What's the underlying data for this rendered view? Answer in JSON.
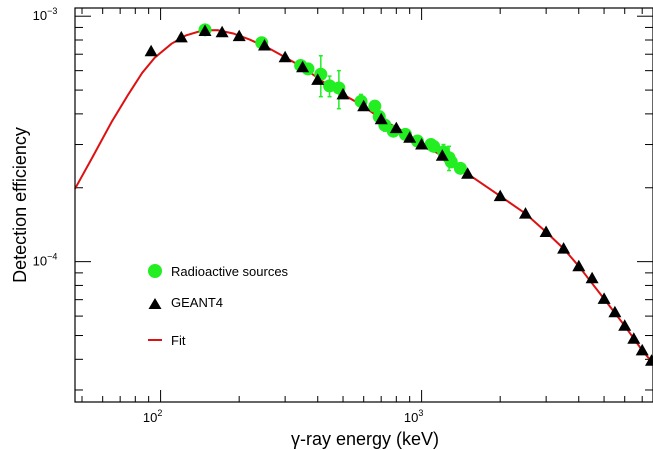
{
  "chart_data": {
    "type": "scatter",
    "xlabel": "γ-ray energy (keV)",
    "ylabel": "Detection efficiency",
    "x_scale": "log",
    "y_scale": "log",
    "xlim": [
      47,
      7700
    ],
    "ylim": [
      2.68e-05,
      0.00108
    ],
    "x_tick_labels": [
      {
        "value": 100,
        "base": "10",
        "exp": "2"
      },
      {
        "value": 1000,
        "base": "10",
        "exp": "3"
      }
    ],
    "y_tick_labels": [
      {
        "value": 0.0001,
        "base": "10",
        "exp": "−4"
      },
      {
        "value": 0.001,
        "base": "10",
        "exp": "−3"
      }
    ],
    "grid": false,
    "legend_position": "lower-left",
    "legend": [
      {
        "label": "Radioactive sources",
        "marker": "circle",
        "color": "#22ee22"
      },
      {
        "label": "GEANT4",
        "marker": "triangle",
        "color": "#000000"
      },
      {
        "label": "Fit",
        "marker": "line",
        "color": "#dd1111"
      }
    ],
    "series": [
      {
        "name": "Radioactive sources",
        "marker": "circle",
        "color": "#22ee22",
        "points": [
          {
            "x": 148,
            "y": 0.00088,
            "err": 1e-05
          },
          {
            "x": 244,
            "y": 0.00078,
            "err": 1e-05
          },
          {
            "x": 344,
            "y": 0.00063,
            "err": 2e-05
          },
          {
            "x": 367,
            "y": 0.00061,
            "err": 2e-05
          },
          {
            "x": 411,
            "y": 0.00058,
            "err": 0.00011
          },
          {
            "x": 444,
            "y": 0.00052,
            "err": 5e-05
          },
          {
            "x": 482,
            "y": 0.00051,
            "err": 9e-05
          },
          {
            "x": 586,
            "y": 0.00045,
            "err": 3e-05
          },
          {
            "x": 662,
            "y": 0.00043,
            "err": 2e-05
          },
          {
            "x": 688,
            "y": 0.00039,
            "err": 2e-05
          },
          {
            "x": 723,
            "y": 0.00036,
            "err": 2e-05
          },
          {
            "x": 779,
            "y": 0.00034,
            "err": 1e-05
          },
          {
            "x": 867,
            "y": 0.00033,
            "err": 1e-05
          },
          {
            "x": 964,
            "y": 0.00031,
            "err": 1e-05
          },
          {
            "x": 1086,
            "y": 0.0003,
            "err": 1e-05
          },
          {
            "x": 1112,
            "y": 0.000295,
            "err": 1e-05
          },
          {
            "x": 1213,
            "y": 0.00028,
            "err": 2e-05
          },
          {
            "x": 1274,
            "y": 0.000265,
            "err": 3e-05
          },
          {
            "x": 1299,
            "y": 0.000255,
            "err": 1e-05
          },
          {
            "x": 1408,
            "y": 0.00024,
            "err": 1e-05
          }
        ]
      },
      {
        "name": "GEANT4",
        "marker": "triangle",
        "color": "#000000",
        "points": [
          {
            "x": 92,
            "y": 0.00072
          },
          {
            "x": 120,
            "y": 0.00082
          },
          {
            "x": 148,
            "y": 0.00087
          },
          {
            "x": 172,
            "y": 0.00086
          },
          {
            "x": 200,
            "y": 0.00083
          },
          {
            "x": 250,
            "y": 0.00076
          },
          {
            "x": 300,
            "y": 0.00068
          },
          {
            "x": 350,
            "y": 0.00062
          },
          {
            "x": 400,
            "y": 0.00055
          },
          {
            "x": 500,
            "y": 0.00048
          },
          {
            "x": 600,
            "y": 0.00043
          },
          {
            "x": 700,
            "y": 0.00038
          },
          {
            "x": 800,
            "y": 0.00035
          },
          {
            "x": 900,
            "y": 0.00032
          },
          {
            "x": 1000,
            "y": 0.0003
          },
          {
            "x": 1200,
            "y": 0.00027
          },
          {
            "x": 1500,
            "y": 0.000228
          },
          {
            "x": 2000,
            "y": 0.000185
          },
          {
            "x": 2500,
            "y": 0.000157
          },
          {
            "x": 3000,
            "y": 0.000132
          },
          {
            "x": 3500,
            "y": 0.000113
          },
          {
            "x": 4000,
            "y": 9.58e-05
          },
          {
            "x": 4500,
            "y": 8.55e-05
          },
          {
            "x": 5000,
            "y": 7.05e-05
          },
          {
            "x": 5500,
            "y": 6.22e-05
          },
          {
            "x": 6000,
            "y": 5.48e-05
          },
          {
            "x": 6500,
            "y": 4.85e-05
          },
          {
            "x": 7000,
            "y": 4.35e-05
          },
          {
            "x": 7600,
            "y": 3.95e-05
          }
        ]
      },
      {
        "name": "Fit",
        "marker": "line",
        "color": "#dd1111",
        "points": [
          {
            "x": 47,
            "y": 0.000198
          },
          {
            "x": 55,
            "y": 0.000268
          },
          {
            "x": 65,
            "y": 0.000372
          },
          {
            "x": 75,
            "y": 0.000478
          },
          {
            "x": 85,
            "y": 0.000588
          },
          {
            "x": 95,
            "y": 0.000678
          },
          {
            "x": 110,
            "y": 0.000772
          },
          {
            "x": 125,
            "y": 0.000835
          },
          {
            "x": 145,
            "y": 0.000875
          },
          {
            "x": 165,
            "y": 0.000878
          },
          {
            "x": 190,
            "y": 0.00085
          },
          {
            "x": 220,
            "y": 0.000802
          },
          {
            "x": 260,
            "y": 0.00074
          },
          {
            "x": 300,
            "y": 0.00068
          },
          {
            "x": 350,
            "y": 0.00062
          },
          {
            "x": 420,
            "y": 0.00054
          },
          {
            "x": 500,
            "y": 0.00048
          },
          {
            "x": 600,
            "y": 0.00043
          },
          {
            "x": 700,
            "y": 0.00038
          },
          {
            "x": 850,
            "y": 0.00034
          },
          {
            "x": 1000,
            "y": 0.0003
          },
          {
            "x": 1200,
            "y": 0.00027
          },
          {
            "x": 1500,
            "y": 0.000228
          },
          {
            "x": 2000,
            "y": 0.000185
          },
          {
            "x": 2500,
            "y": 0.000157
          },
          {
            "x": 3000,
            "y": 0.000132
          },
          {
            "x": 3500,
            "y": 0.000113
          },
          {
            "x": 4000,
            "y": 9.58e-05
          },
          {
            "x": 5000,
            "y": 7.05e-05
          },
          {
            "x": 6000,
            "y": 5.48e-05
          },
          {
            "x": 7000,
            "y": 4.35e-05
          },
          {
            "x": 7700,
            "y": 3.85e-05
          }
        ]
      }
    ]
  }
}
